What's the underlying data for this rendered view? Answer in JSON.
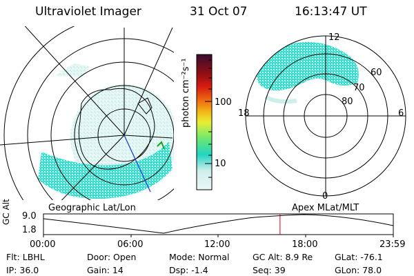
{
  "header": {
    "title": "Ultraviolet Imager",
    "date": "31 Oct 07",
    "time": "16:13:47 UT"
  },
  "colorbar": {
    "unit_label": "photon cm⁻²s⁻¹",
    "ticks": [
      "100",
      "10"
    ],
    "colors": [
      "#eaf7f6",
      "#cfeeea",
      "#22d4c4",
      "#6fe86e",
      "#e8ee33",
      "#f4b318",
      "#ef6c10",
      "#d81c12",
      "#8f0e16",
      "#3a0d2d"
    ]
  },
  "left_map": {
    "name": "geographic-map",
    "coast_color": "#000000",
    "aurora_color": "#30e0cf"
  },
  "right_map": {
    "latitude_labels": [
      "60",
      "70",
      "80"
    ],
    "mlt_labels": {
      "top": "12",
      "left": "18",
      "right": "6",
      "bottom": "0"
    }
  },
  "timeline": {
    "left_title": "Geographic Lat/Lon",
    "right_title": "Apex  MLat/MLT",
    "axis_label": "GC Alt",
    "y_ticks": [
      "9.0",
      "1.8"
    ],
    "x_ticks": [
      "00:00",
      "06:00",
      "12:00",
      "18:00",
      "23:59"
    ],
    "current_marker_hour": 16.23,
    "marker_color": "#d00000"
  },
  "info": {
    "row1": {
      "filt": "Flt: LBHL",
      "door": "Door: Open",
      "mode": "Mode: Normal",
      "gcalt": "GC Alt: 8.9 Re",
      "glat": "GLat: -76.1"
    },
    "row2": {
      "ip": "IP: 36.0",
      "gain": "Gain: 14",
      "dsp": "Dsp:    -1.4",
      "seq": "Seq: 39",
      "glon": "GLon:  78.0"
    }
  }
}
